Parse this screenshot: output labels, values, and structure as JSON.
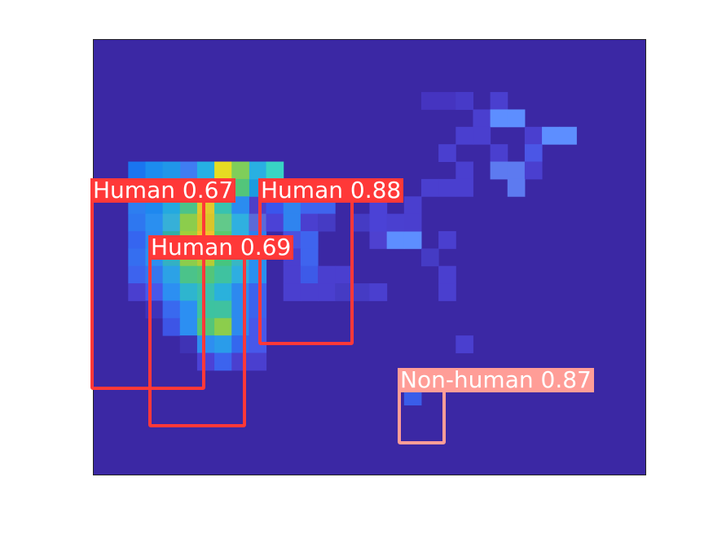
{
  "heatmap": {
    "background_color": "#3b28a4",
    "frame_color": "#222222",
    "cells": [
      [
        "#6d5ae8",
        11,
        11
      ],
      [
        "#6656e6",
        12,
        11
      ],
      [
        "#4e41d0",
        16,
        11
      ],
      [
        "#5d8eff",
        17,
        11
      ],
      [
        "#5d8eff",
        18,
        11
      ],
      [
        "#4f3fc8",
        3,
        10
      ],
      [
        "#4a3fcf",
        10,
        10
      ],
      [
        "#453bc4",
        15,
        10
      ],
      [
        "#4b42d6",
        16,
        10
      ],
      [
        "#4a40d0",
        17,
        10
      ],
      [
        "#3f33b5",
        4,
        9
      ],
      [
        "#4f3fc8",
        9,
        9
      ],
      [
        "#4b42d6",
        16,
        9
      ],
      [
        "#1a9be0",
        9,
        8
      ],
      [
        "#24aee5",
        10,
        8
      ],
      [
        "#2fa3e8",
        11,
        8
      ],
      [
        "#453bc4",
        16,
        8
      ],
      [
        "#29b0e2",
        9,
        7
      ],
      [
        "#38d4c4",
        10,
        7
      ],
      [
        "#3f7df2",
        5,
        7
      ],
      [
        "#26b0e4",
        6,
        7
      ],
      [
        "#e6dc22",
        7,
        7
      ],
      [
        "#7fce5a",
        8,
        7
      ],
      [
        "#1a75f0",
        2,
        7
      ],
      [
        "#1c8cef",
        3,
        7
      ],
      [
        "#2096e9",
        4,
        7
      ],
      [
        "#2077ee",
        2,
        8
      ],
      [
        "#1c8ff1",
        3,
        8
      ],
      [
        "#22a2e6",
        4,
        8
      ],
      [
        "#2dc2c8",
        5,
        8
      ],
      [
        "#f6d33e",
        6,
        8
      ],
      [
        "#82cd4f",
        7,
        8
      ],
      [
        "#53c57a",
        8,
        8
      ],
      [
        "#2d7ef0",
        2,
        9
      ],
      [
        "#1e88ef",
        3,
        9
      ],
      [
        "#24a9e0",
        4,
        9
      ],
      [
        "#4bc38a",
        5,
        9
      ],
      [
        "#e2c82c",
        6,
        9
      ],
      [
        "#38c2b0",
        7,
        9
      ],
      [
        "#2b8cf0",
        8,
        9
      ],
      [
        "#2e77f0",
        2,
        10
      ],
      [
        "#2a8ff0",
        3,
        10
      ],
      [
        "#36b0d8",
        4,
        10
      ],
      [
        "#8ccd4c",
        5,
        10
      ],
      [
        "#d9c52a",
        6,
        10
      ],
      [
        "#62c98a",
        7,
        10
      ],
      [
        "#2fb0e0",
        8,
        10
      ],
      [
        "#5b6ad8",
        9,
        10
      ],
      [
        "#3565f0",
        2,
        11
      ],
      [
        "#2d8aef",
        3,
        11
      ],
      [
        "#33ada6",
        4,
        11
      ],
      [
        "#a0cf3a",
        5,
        11
      ],
      [
        "#f3c12c",
        6,
        11
      ],
      [
        "#59c96e",
        7,
        11
      ],
      [
        "#2eb0e2",
        8,
        11
      ],
      [
        "#2d7ef0",
        9,
        11
      ],
      [
        "#356ef0",
        2,
        12
      ],
      [
        "#2c8ff2",
        3,
        12
      ],
      [
        "#33b1c3",
        4,
        12
      ],
      [
        "#8ccd4c",
        5,
        12
      ],
      [
        "#b6cc34",
        6,
        12
      ],
      [
        "#46c57f",
        7,
        12
      ],
      [
        "#38b7c4",
        8,
        12
      ],
      [
        "#2a8ff0",
        9,
        12
      ],
      [
        "#3d63ee",
        2,
        13
      ],
      [
        "#3577ef",
        3,
        13
      ],
      [
        "#2ca2e6",
        4,
        13
      ],
      [
        "#4bc38a",
        5,
        13
      ],
      [
        "#53c57a",
        6,
        13
      ],
      [
        "#3fc2a0",
        7,
        13
      ],
      [
        "#2eaee0",
        8,
        13
      ],
      [
        "#2a8ff0",
        9,
        13
      ],
      [
        "#4a3fcf",
        2,
        14
      ],
      [
        "#4758ea",
        3,
        14
      ],
      [
        "#2c8ff2",
        4,
        14
      ],
      [
        "#2eb5cf",
        5,
        14
      ],
      [
        "#39c0b0",
        6,
        14
      ],
      [
        "#2ab1dc",
        7,
        14
      ],
      [
        "#2d89ef",
        8,
        14
      ],
      [
        "#3c63ee",
        9,
        14
      ],
      [
        "#3e33ba",
        3,
        15
      ],
      [
        "#3969ef",
        4,
        15
      ],
      [
        "#2c8ff2",
        5,
        15
      ],
      [
        "#3dc3a0",
        6,
        15
      ],
      [
        "#3fc2a0",
        7,
        15
      ],
      [
        "#2d8aef",
        8,
        15
      ],
      [
        "#3c63ee",
        9,
        15
      ],
      [
        "#3d55e6",
        4,
        16
      ],
      [
        "#2c8ff2",
        5,
        16
      ],
      [
        "#53c57a",
        6,
        16
      ],
      [
        "#8ccd4c",
        7,
        16
      ],
      [
        "#2d8aef",
        8,
        16
      ],
      [
        "#4758ea",
        9,
        16
      ],
      [
        "#3f33b5",
        5,
        17
      ],
      [
        "#2e8ef0",
        6,
        17
      ],
      [
        "#2a9cea",
        7,
        17
      ],
      [
        "#3468ee",
        8,
        17
      ],
      [
        "#4758ea",
        9,
        17
      ],
      [
        "#4b42d6",
        6,
        18
      ],
      [
        "#3c63ee",
        7,
        18
      ],
      [
        "#4a3fcf",
        8,
        18
      ],
      [
        "#4a3fcf",
        9,
        18
      ],
      [
        "#3a55ec",
        10,
        9
      ],
      [
        "#2f84ef",
        11,
        9
      ],
      [
        "#3f64ee",
        12,
        9
      ],
      [
        "#3f64ee",
        13,
        9
      ],
      [
        "#4b42d6",
        10,
        10
      ],
      [
        "#2f84ef",
        11,
        10
      ],
      [
        "#4a3fcf",
        12,
        10
      ],
      [
        "#453bc4",
        13,
        10
      ],
      [
        "#4a52e0",
        11,
        11
      ],
      [
        "#3f64ee",
        12,
        11
      ],
      [
        "#4a3fcf",
        11,
        12
      ],
      [
        "#3f64ee",
        12,
        12
      ],
      [
        "#4a3fcf",
        11,
        13
      ],
      [
        "#3d5ae8",
        12,
        13
      ],
      [
        "#4a3fcf",
        13,
        13
      ],
      [
        "#4a3fcf",
        14,
        13
      ],
      [
        "#4a3fcf",
        11,
        14
      ],
      [
        "#4a3fcf",
        12,
        14
      ],
      [
        "#4a3fcf",
        13,
        14
      ],
      [
        "#453bc4",
        14,
        14
      ],
      [
        "#453bc4",
        15,
        14
      ],
      [
        "#4a3fcf",
        16,
        14
      ],
      [
        "#2a9cea",
        18,
        19
      ],
      [
        "#3466ee",
        19,
        19
      ],
      [
        "#3a5de9",
        18,
        20
      ],
      [
        "#4534c0",
        19,
        3
      ],
      [
        "#4534c0",
        20,
        3
      ],
      [
        "#473ac8",
        21,
        3
      ],
      [
        "#473ac8",
        21,
        3
      ],
      [
        "#4a3fcf",
        22,
        4
      ],
      [
        "#4a3fcf",
        23,
        3
      ],
      [
        "#5d8eff",
        23,
        4
      ],
      [
        "#5d8eff",
        24,
        4
      ],
      [
        "#4a3fcf",
        22,
        5
      ],
      [
        "#4a3fcf",
        21,
        5
      ],
      [
        "#4a3fcf",
        25,
        5
      ],
      [
        "#5d8eff",
        26,
        5
      ],
      [
        "#5d8eff",
        27,
        5
      ],
      [
        "#4a3fcf",
        20,
        6
      ],
      [
        "#4a3fcf",
        23,
        6
      ],
      [
        "#4b56e6",
        25,
        6
      ],
      [
        "#4a3fcf",
        21,
        7
      ],
      [
        "#5d7af0",
        23,
        7
      ],
      [
        "#5d7af0",
        24,
        7
      ],
      [
        "#4a3fcf",
        25,
        7
      ],
      [
        "#4a3fcf",
        20,
        8
      ],
      [
        "#4a3fcf",
        19,
        8
      ],
      [
        "#4a3fcf",
        21,
        8
      ],
      [
        "#5d7af0",
        24,
        8
      ],
      [
        "#4a3fcf",
        18,
        9
      ],
      [
        "#4a3fcf",
        18,
        10
      ],
      [
        "#4a3fcf",
        20,
        11
      ],
      [
        "#4a3fcf",
        20,
        13
      ],
      [
        "#453bc4",
        19,
        12
      ],
      [
        "#4a3fcf",
        20,
        14
      ],
      [
        "#4a3fcf",
        21,
        17
      ]
    ]
  },
  "detections": [
    {
      "label": "Human 0.67",
      "color": "#ff3838"
    },
    {
      "label": "Human 0.88",
      "color": "#ff3838"
    },
    {
      "label": "Human 0.69",
      "color": "#ff3838"
    },
    {
      "label": "Non-human 0.87",
      "color": "#ff9d97"
    }
  ]
}
